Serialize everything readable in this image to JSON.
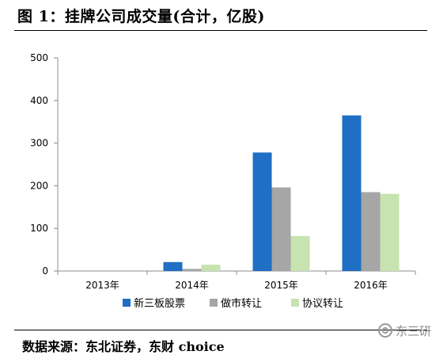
{
  "title": "图 1：挂牌公司成交量(合计，亿股)",
  "source": "数据来源：东北证券，东财 choice",
  "watermark": "东三研",
  "colors": {
    "series1": "#1f6fc4",
    "series2": "#a6a6a6",
    "series3": "#c6e3b0",
    "axis": "#8c8c8c"
  },
  "chart_data": {
    "type": "bar",
    "title": "挂牌公司成交量(合计，亿股)",
    "xlabel": "",
    "ylabel": "",
    "categories": [
      "2013年",
      "2014年",
      "2015年",
      "2016年"
    ],
    "series": [
      {
        "name": "新三板股票",
        "values": [
          0,
          21,
          278,
          365
        ]
      },
      {
        "name": "做市转让",
        "values": [
          0,
          5,
          196,
          185
        ]
      },
      {
        "name": "协议转让",
        "values": [
          0,
          15,
          82,
          181
        ]
      }
    ],
    "ylim": [
      0,
      500
    ],
    "yticks": [
      "0",
      "100",
      "200",
      "300",
      "400",
      "500"
    ],
    "grid": false,
    "legend": "bottom"
  }
}
